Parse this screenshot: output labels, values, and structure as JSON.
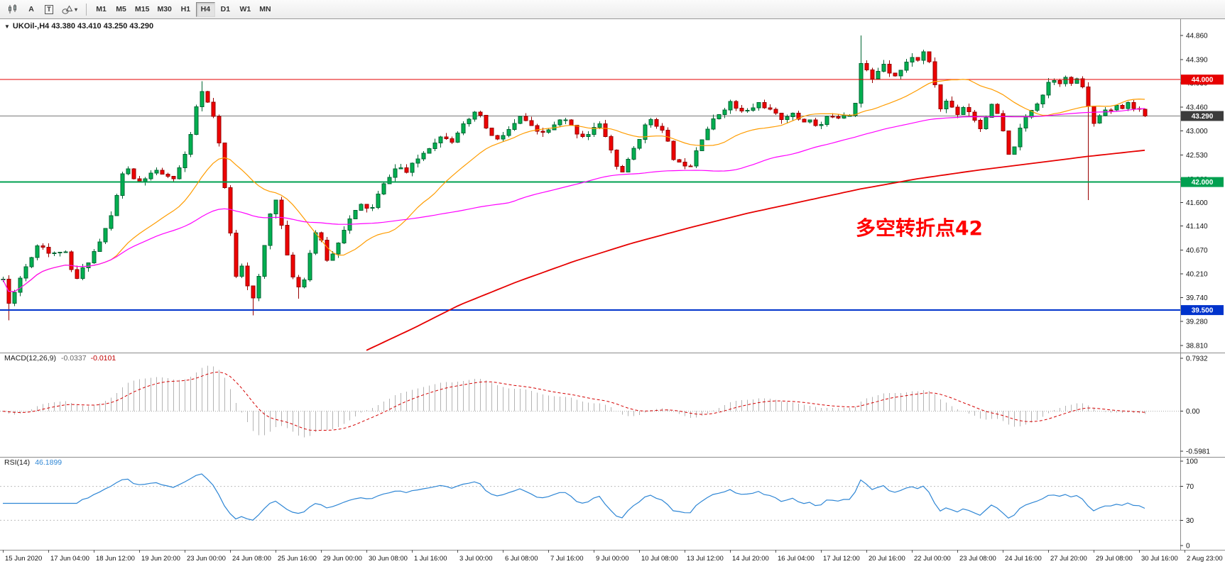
{
  "toolbar": {
    "tools": [
      {
        "label": "A"
      },
      {
        "label": "T"
      }
    ],
    "timeframes": [
      {
        "label": "M1",
        "active": false
      },
      {
        "label": "M5",
        "active": false
      },
      {
        "label": "M15",
        "active": false
      },
      {
        "label": "M30",
        "active": false
      },
      {
        "label": "H1",
        "active": false
      },
      {
        "label": "H4",
        "active": true
      },
      {
        "label": "D1",
        "active": false
      },
      {
        "label": "W1",
        "active": false
      },
      {
        "label": "MN",
        "active": false
      }
    ]
  },
  "chart": {
    "title": "UKOil-,H4 43.380 43.410 43.250 43.290",
    "annotation": {
      "text": "多空转折点42",
      "color": "#ff0000"
    },
    "price_axis": {
      "ticks": [
        "44.860",
        "44.390",
        "43.930",
        "43.460",
        "43.000",
        "42.530",
        "42.060",
        "41.600",
        "41.140",
        "40.670",
        "40.210",
        "39.740",
        "39.280",
        "38.810"
      ]
    },
    "hlines": [
      {
        "price": 44.0,
        "label": "44.000",
        "color": "#e60000",
        "width": 1
      },
      {
        "price": 42.0,
        "label": "42.000",
        "color": "#00a050",
        "width": 2
      },
      {
        "price": 39.5,
        "label": "39.500",
        "color": "#0033cc",
        "width": 2
      }
    ],
    "current_price": {
      "value": 43.29,
      "label": "43.290",
      "badge_color": "#3c3c3c"
    }
  },
  "macd_panel": {
    "label": "MACD(12,26,9)",
    "value_main": "-0.0337",
    "value_signal": "-0.0101",
    "axis_labels": [
      "0.7932",
      "0.00",
      "-0.5981"
    ]
  },
  "rsi_panel": {
    "label": "RSI(14)",
    "value": "46.1899",
    "axis_labels": [
      "100",
      "70",
      "30",
      "0"
    ]
  },
  "chart_data": {
    "type": "candlestick",
    "symbol": "UKOil-",
    "timeframe": "H4",
    "ohlc_current": {
      "open": 43.38,
      "high": 43.41,
      "low": 43.25,
      "close": 43.29
    },
    "n_candles": 202,
    "seed": 11,
    "body_noise": 0.1,
    "wick_noise": 0.09,
    "last_close": 43.29,
    "price_view": {
      "max": 45.18,
      "min": 38.67
    },
    "key_levels": [
      44.0,
      42.0,
      39.5
    ],
    "close_path": [
      [
        0,
        40.1
      ],
      [
        0.005,
        39.62
      ],
      [
        0.011,
        39.95
      ],
      [
        0.021,
        40.4
      ],
      [
        0.032,
        40.85
      ],
      [
        0.042,
        40.55
      ],
      [
        0.053,
        40.7
      ],
      [
        0.063,
        40.05
      ],
      [
        0.074,
        40.45
      ],
      [
        0.084,
        40.8
      ],
      [
        0.095,
        41.35
      ],
      [
        0.103,
        42.05
      ],
      [
        0.108,
        42.35
      ],
      [
        0.116,
        41.95
      ],
      [
        0.126,
        42.1
      ],
      [
        0.137,
        42.22
      ],
      [
        0.147,
        42.02
      ],
      [
        0.155,
        42.3
      ],
      [
        0.163,
        42.75
      ],
      [
        0.168,
        43.3
      ],
      [
        0.172,
        43.85
      ],
      [
        0.177,
        43.62
      ],
      [
        0.182,
        43.42
      ],
      [
        0.187,
        43.05
      ],
      [
        0.192,
        42.25
      ],
      [
        0.198,
        41.15
      ],
      [
        0.204,
        40.18
      ],
      [
        0.209,
        40.4
      ],
      [
        0.215,
        39.92
      ],
      [
        0.22,
        39.65
      ],
      [
        0.227,
        40.5
      ],
      [
        0.233,
        41.3
      ],
      [
        0.238,
        41.78
      ],
      [
        0.244,
        41.12
      ],
      [
        0.25,
        40.38
      ],
      [
        0.256,
        40.05
      ],
      [
        0.261,
        39.88
      ],
      [
        0.267,
        40.45
      ],
      [
        0.273,
        41.05
      ],
      [
        0.279,
        40.8
      ],
      [
        0.285,
        40.4
      ],
      [
        0.291,
        40.72
      ],
      [
        0.299,
        41.12
      ],
      [
        0.307,
        41.38
      ],
      [
        0.315,
        41.58
      ],
      [
        0.322,
        41.42
      ],
      [
        0.33,
        41.82
      ],
      [
        0.339,
        42.15
      ],
      [
        0.346,
        42.32
      ],
      [
        0.353,
        42.18
      ],
      [
        0.361,
        42.4
      ],
      [
        0.37,
        42.62
      ],
      [
        0.378,
        42.8
      ],
      [
        0.386,
        42.92
      ],
      [
        0.393,
        42.82
      ],
      [
        0.4,
        43.06
      ],
      [
        0.407,
        43.14
      ],
      [
        0.414,
        43.4
      ],
      [
        0.42,
        43.18
      ],
      [
        0.426,
        42.94
      ],
      [
        0.432,
        42.8
      ],
      [
        0.44,
        42.96
      ],
      [
        0.448,
        43.12
      ],
      [
        0.454,
        43.3
      ],
      [
        0.461,
        43.1
      ],
      [
        0.469,
        42.92
      ],
      [
        0.476,
        43.0
      ],
      [
        0.483,
        43.1
      ],
      [
        0.49,
        43.24
      ],
      [
        0.496,
        43.12
      ],
      [
        0.503,
        42.96
      ],
      [
        0.51,
        42.88
      ],
      [
        0.516,
        43.04
      ],
      [
        0.522,
        43.12
      ],
      [
        0.529,
        42.84
      ],
      [
        0.535,
        42.44
      ],
      [
        0.54,
        42.14
      ],
      [
        0.546,
        42.34
      ],
      [
        0.552,
        42.64
      ],
      [
        0.559,
        42.96
      ],
      [
        0.567,
        43.24
      ],
      [
        0.573,
        43.12
      ],
      [
        0.579,
        42.92
      ],
      [
        0.585,
        42.6
      ],
      [
        0.59,
        42.3
      ],
      [
        0.595,
        42.44
      ],
      [
        0.6,
        42.24
      ],
      [
        0.605,
        42.54
      ],
      [
        0.611,
        42.84
      ],
      [
        0.619,
        43.12
      ],
      [
        0.628,
        43.36
      ],
      [
        0.636,
        43.56
      ],
      [
        0.642,
        43.44
      ],
      [
        0.649,
        43.34
      ],
      [
        0.657,
        43.46
      ],
      [
        0.663,
        43.56
      ],
      [
        0.669,
        43.44
      ],
      [
        0.675,
        43.32
      ],
      [
        0.681,
        43.24
      ],
      [
        0.689,
        43.34
      ],
      [
        0.695,
        43.26
      ],
      [
        0.701,
        43.18
      ],
      [
        0.707,
        43.24
      ],
      [
        0.713,
        43.04
      ],
      [
        0.719,
        43.18
      ],
      [
        0.725,
        43.32
      ],
      [
        0.731,
        43.28
      ],
      [
        0.737,
        43.34
      ],
      [
        0.743,
        43.32
      ],
      [
        0.748,
        43.72
      ],
      [
        0.752,
        44.45
      ],
      [
        0.756,
        44.18
      ],
      [
        0.76,
        43.96
      ],
      [
        0.765,
        44.12
      ],
      [
        0.77,
        44.36
      ],
      [
        0.775,
        44.2
      ],
      [
        0.78,
        44.08
      ],
      [
        0.786,
        44.18
      ],
      [
        0.791,
        44.32
      ],
      [
        0.796,
        44.46
      ],
      [
        0.801,
        44.36
      ],
      [
        0.806,
        44.56
      ],
      [
        0.811,
        44.3
      ],
      [
        0.816,
        43.9
      ],
      [
        0.821,
        43.42
      ],
      [
        0.826,
        43.58
      ],
      [
        0.831,
        43.46
      ],
      [
        0.836,
        43.34
      ],
      [
        0.841,
        43.48
      ],
      [
        0.846,
        43.38
      ],
      [
        0.851,
        43.22
      ],
      [
        0.856,
        43.04
      ],
      [
        0.861,
        43.32
      ],
      [
        0.866,
        43.48
      ],
      [
        0.871,
        43.32
      ],
      [
        0.876,
        42.94
      ],
      [
        0.881,
        42.48
      ],
      [
        0.886,
        42.74
      ],
      [
        0.891,
        43.04
      ],
      [
        0.896,
        43.28
      ],
      [
        0.901,
        43.44
      ],
      [
        0.906,
        43.58
      ],
      [
        0.911,
        43.74
      ],
      [
        0.916,
        43.98
      ],
      [
        0.921,
        44.02
      ],
      [
        0.926,
        43.96
      ],
      [
        0.931,
        44.02
      ],
      [
        0.936,
        43.92
      ],
      [
        0.941,
        43.98
      ],
      [
        0.946,
        43.86
      ],
      [
        0.951,
        43.38
      ],
      [
        0.956,
        43.12
      ],
      [
        0.961,
        43.34
      ],
      [
        0.966,
        43.48
      ],
      [
        0.971,
        43.38
      ],
      [
        0.976,
        43.48
      ],
      [
        0.981,
        43.44
      ],
      [
        0.986,
        43.54
      ],
      [
        0.991,
        43.46
      ],
      [
        0.996,
        43.38
      ],
      [
        1,
        43.29
      ]
    ],
    "wick_events": [
      {
        "t": 0.752,
        "high": 44.86
      },
      {
        "t": 0.951,
        "low": 41.65
      },
      {
        "t": 0.22,
        "low": 39.4
      },
      {
        "t": 0.172,
        "high": 43.97
      },
      {
        "t": 0.005,
        "low": 39.3
      },
      {
        "t": 0.261,
        "low": 39.72
      }
    ],
    "ma": {
      "fast_period": 20,
      "mid_period": 90,
      "slow_keyframes": [
        [
          0.317,
          38.7
        ],
        [
          0.36,
          39.15
        ],
        [
          0.4,
          39.6
        ],
        [
          0.45,
          40.05
        ],
        [
          0.5,
          40.45
        ],
        [
          0.55,
          40.8
        ],
        [
          0.6,
          41.1
        ],
        [
          0.65,
          41.38
        ],
        [
          0.7,
          41.62
        ],
        [
          0.75,
          41.86
        ],
        [
          0.8,
          42.06
        ],
        [
          0.85,
          42.22
        ],
        [
          0.9,
          42.36
        ],
        [
          0.95,
          42.5
        ],
        [
          1,
          42.62
        ]
      ]
    },
    "macd": {
      "fast": 12,
      "slow": 26,
      "signal_period": 9,
      "view_max": 0.7932,
      "view_min": -0.5981
    },
    "rsi": {
      "period": 14,
      "levels": [
        70,
        30
      ],
      "view_max": 105,
      "view_min": -5
    },
    "time_labels": [
      "15 Jun 2020",
      "17 Jun 04:00",
      "18 Jun 12:00",
      "19 Jun 20:00",
      "23 Jun 00:00",
      "24 Jun 08:00",
      "25 Jun 16:00",
      "29 Jun 00:00",
      "30 Jun 08:00",
      "1 Jul 16:00",
      "3 Jul 00:00",
      "6 Jul 08:00",
      "7 Jul 16:00",
      "9 Jul 00:00",
      "10 Jul 08:00",
      "13 Jul 12:00",
      "14 Jul 20:00",
      "16 Jul 04:00",
      "17 Jul 12:00",
      "20 Jul 16:00",
      "22 Jul 00:00",
      "23 Jul 08:00",
      "24 Jul 16:00",
      "27 Jul 20:00",
      "29 Jul 08:00",
      "30 Jul 16:00",
      "2 Aug 23:00"
    ]
  },
  "colors": {
    "candle_up": "#00b050",
    "candle_up_stroke": "#006633",
    "candle_down": "#ee0000",
    "candle_down_stroke": "#990000",
    "ma_fast": "#ff9c00",
    "ma_mid": "#ff00ff",
    "ma_slow": "#e60000",
    "current_price_line": "#7a7a7a",
    "macd_hist": "#b4b4b4",
    "macd_signal": "#d40000",
    "rsi_line": "#2e86d5",
    "level_dash": "#bdbdbd",
    "axis_text": "#111111",
    "panel_border": "#8c8c8c",
    "annotation": "#ff0000"
  }
}
